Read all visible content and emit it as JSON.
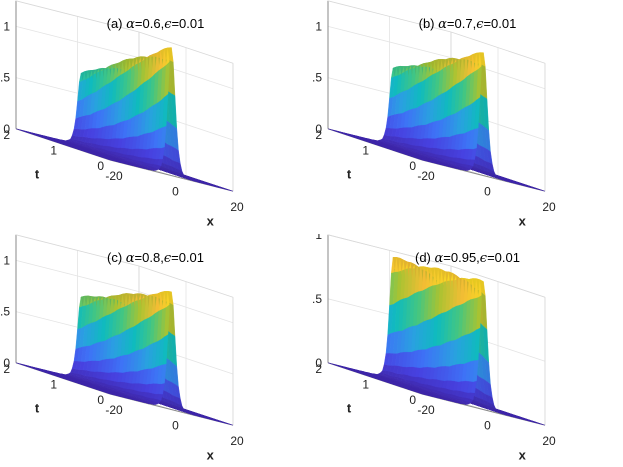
{
  "figure": {
    "background": "#ffffff",
    "colormap": [
      "#3e26a8",
      "#4741e0",
      "#3e72f6",
      "#2aa0e1",
      "#0fbbbe",
      "#43c682",
      "#a8c332",
      "#f3bd34",
      "#f9e41c"
    ]
  },
  "chart_data": [
    {
      "type": "surface",
      "label": "(a)",
      "title_parts": [
        "(a) ",
        "α",
        "=0.6,",
        "ϵ",
        "=0.01"
      ],
      "alpha": 0.6,
      "epsilon": 0.01,
      "xlabel": "x",
      "ylabel": "t",
      "zlabel": "|u|",
      "xlim": [
        -20,
        20
      ],
      "ylim": [
        0,
        2
      ],
      "zlim": [
        0,
        1.25
      ],
      "xticks": [
        "-20",
        "0",
        "20"
      ],
      "yticks": [
        "0",
        "1",
        "2"
      ],
      "zticks": [
        "0",
        "0.5",
        "1"
      ],
      "xtick_values": [
        -20,
        0,
        20
      ],
      "ytick_values": [
        0,
        1,
        2
      ],
      "ztick_values": [
        0,
        0.5,
        1
      ],
      "peak_start": 1.25,
      "peak_end": 0.7,
      "pulse_width": 1.6,
      "grid": true
    },
    {
      "type": "surface",
      "label": "(b)",
      "title_parts": [
        "(b) ",
        "α",
        "=0.7,",
        "ϵ",
        "=0.01"
      ],
      "alpha": 0.7,
      "epsilon": 0.01,
      "xlabel": "x",
      "ylabel": "t",
      "zlabel": "|u|",
      "xlim": [
        -20,
        20
      ],
      "ylim": [
        0,
        2
      ],
      "zlim": [
        0,
        1.25
      ],
      "xticks": [
        "-20",
        "0",
        "20"
      ],
      "yticks": [
        "0",
        "1",
        "2"
      ],
      "zticks": [
        "0",
        "0.5",
        "1"
      ],
      "xtick_values": [
        -20,
        0,
        20
      ],
      "ytick_values": [
        0,
        1,
        2
      ],
      "ztick_values": [
        0,
        0.5,
        1
      ],
      "peak_start": 1.2,
      "peak_end": 0.75,
      "pulse_width": 1.6,
      "grid": true
    },
    {
      "type": "surface",
      "label": "(c)",
      "title_parts": [
        "(c) ",
        "α",
        "=0.8,",
        "ϵ",
        "=0.01"
      ],
      "alpha": 0.8,
      "epsilon": 0.01,
      "xlabel": "x",
      "ylabel": "t",
      "zlabel": "|u|",
      "xlim": [
        -20,
        20
      ],
      "ylim": [
        0,
        2
      ],
      "zlim": [
        0,
        1.25
      ],
      "xticks": [
        "-20",
        "0",
        "20"
      ],
      "yticks": [
        "0",
        "1",
        "2"
      ],
      "zticks": [
        "0",
        "0.5",
        "1"
      ],
      "xtick_values": [
        -20,
        0,
        20
      ],
      "ytick_values": [
        0,
        1,
        2
      ],
      "ztick_values": [
        0,
        0.5,
        1
      ],
      "peak_start": 1.15,
      "peak_end": 0.8,
      "pulse_width": 1.6,
      "grid": true
    },
    {
      "type": "surface",
      "label": "(d)",
      "title_parts": [
        "(d) ",
        "α",
        "=0.95,",
        "ϵ",
        "=0.01"
      ],
      "alpha": 0.95,
      "epsilon": 0.01,
      "xlabel": "x",
      "ylabel": "t",
      "zlabel": "|u|",
      "xlim": [
        -20,
        20
      ],
      "ylim": [
        0,
        2
      ],
      "zlim": [
        0,
        1
      ],
      "xticks": [
        "-20",
        "0",
        "20"
      ],
      "yticks": [
        "0",
        "1",
        "2"
      ],
      "zticks": [
        "0",
        "0.5",
        "1"
      ],
      "xtick_values": [
        -20,
        0,
        20
      ],
      "ytick_values": [
        0,
        1,
        2
      ],
      "ztick_values": [
        0,
        0.5,
        1
      ],
      "peak_start": 1.0,
      "peak_end": 0.95,
      "pulse_width": 1.6,
      "grid": true
    }
  ]
}
